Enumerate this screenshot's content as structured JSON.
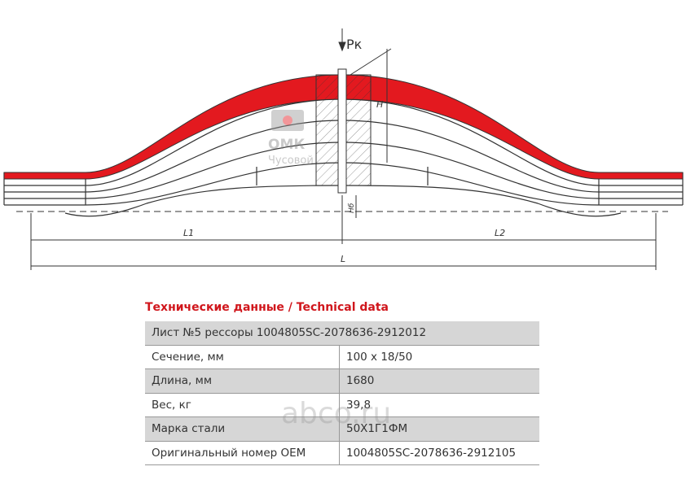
{
  "drawing": {
    "load_label": "Рк",
    "height_label": "H",
    "base_height_label": "Hб",
    "l1_label": "L1",
    "l2_label": "L2",
    "l_label": "L",
    "logo": {
      "name": "ОМК",
      "city": "Чусовой"
    },
    "watermark": "abco.ru"
  },
  "table": {
    "title": "Технические данные / Technical data",
    "rows": [
      [
        "Лист №5 рессоры 1004805SC-2078636-2912012"
      ],
      [
        "Сечение, мм",
        "100 x 18/50"
      ],
      [
        "Длина, мм",
        "1680"
      ],
      [
        "Вес, кг",
        "39,8"
      ],
      [
        "Марка стали",
        "50Х1Г1ФМ"
      ],
      [
        "Оригинальный номер OEM",
        "1004805SC-2078636-2912105"
      ]
    ]
  }
}
